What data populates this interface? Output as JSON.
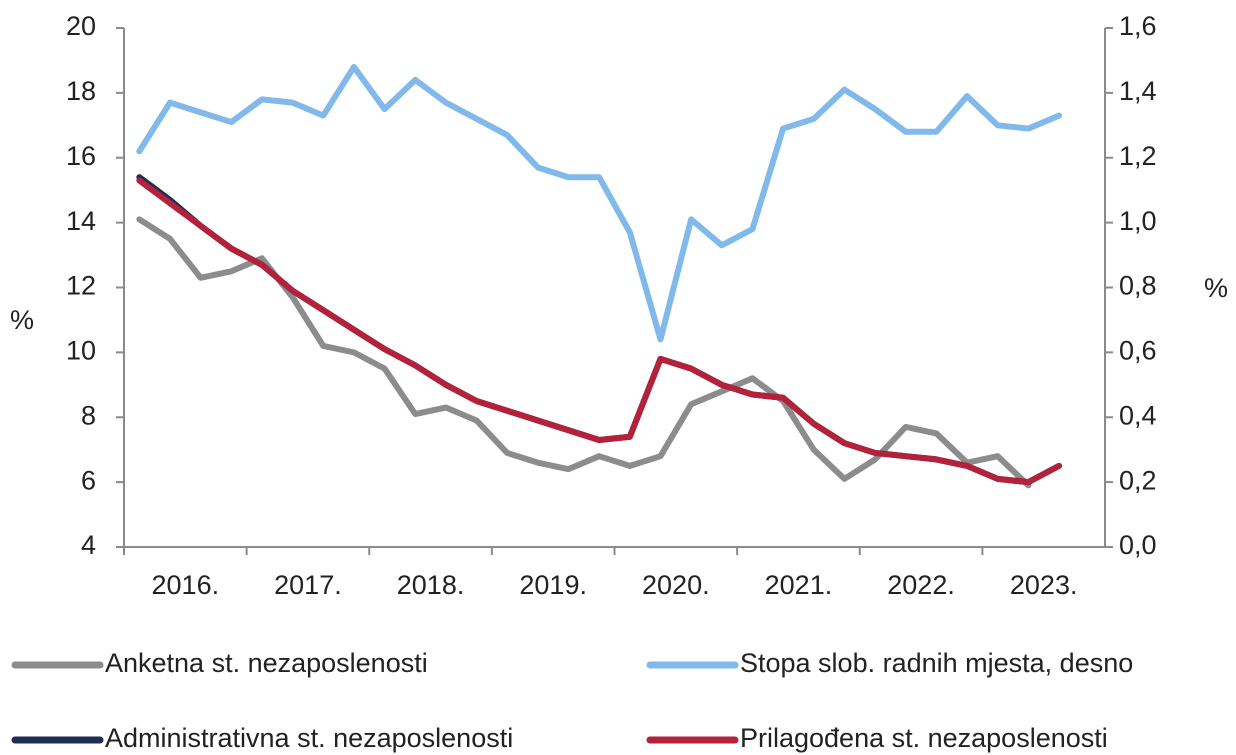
{
  "chart_data": {
    "type": "line",
    "x": [
      2016.125,
      2016.375,
      2016.625,
      2016.875,
      2017.125,
      2017.375,
      2017.625,
      2017.875,
      2018.125,
      2018.375,
      2018.625,
      2018.875,
      2019.125,
      2019.375,
      2019.625,
      2019.875,
      2020.125,
      2020.375,
      2020.625,
      2020.875,
      2021.125,
      2021.375,
      2021.625,
      2021.875,
      2022.125,
      2022.375,
      2022.625,
      2022.875,
      2023.125,
      2023.375,
      2023.625
    ],
    "xlim": [
      2016,
      2024
    ],
    "xticks": [
      {
        "value": 2016.5,
        "label": "2016."
      },
      {
        "value": 2017.5,
        "label": "2017."
      },
      {
        "value": 2018.5,
        "label": "2018."
      },
      {
        "value": 2019.5,
        "label": "2019."
      },
      {
        "value": 2020.5,
        "label": "2020."
      },
      {
        "value": 2021.5,
        "label": "2021."
      },
      {
        "value": 2022.5,
        "label": "2022."
      },
      {
        "value": 2023.5,
        "label": "2023."
      }
    ],
    "ylabel": "%",
    "y2label": "%",
    "ylim": [
      4,
      20
    ],
    "yticks": [
      4,
      6,
      8,
      10,
      12,
      14,
      16,
      18,
      20
    ],
    "y2lim": [
      0,
      1.6
    ],
    "y2ticks": [
      {
        "value": 0,
        "label": "0,0"
      },
      {
        "value": 0.2,
        "label": "0,2"
      },
      {
        "value": 0.4,
        "label": "0,4"
      },
      {
        "value": 0.6,
        "label": "0,6"
      },
      {
        "value": 0.8,
        "label": "0,8"
      },
      {
        "value": 1.0,
        "label": "1,0"
      },
      {
        "value": 1.2,
        "label": "1,2"
      },
      {
        "value": 1.4,
        "label": "1,4"
      },
      {
        "value": 1.6,
        "label": "1,6"
      }
    ],
    "series": [
      {
        "name": "Anketna st. nezaposlenosti",
        "color": "#8c8c8c",
        "values": [
          14.1,
          13.5,
          12.3,
          12.5,
          12.9,
          11.7,
          10.2,
          10.0,
          9.5,
          8.1,
          8.3,
          7.9,
          6.9,
          6.6,
          6.4,
          6.8,
          6.5,
          6.8,
          8.4,
          8.8,
          9.2,
          8.5,
          7.0,
          6.1,
          6.7,
          7.7,
          7.5,
          6.6,
          6.8,
          5.9,
          null
        ]
      },
      {
        "name": "Stopa slob. radnih mjesta, desno",
        "color": "#80b9ea",
        "axis": "y2",
        "values": [
          1.22,
          1.37,
          1.34,
          1.31,
          1.38,
          1.37,
          1.33,
          1.48,
          1.35,
          1.44,
          1.37,
          1.32,
          1.27,
          1.17,
          1.14,
          1.14,
          0.97,
          0.64,
          1.01,
          0.93,
          0.98,
          1.29,
          1.32,
          1.41,
          1.35,
          1.28,
          1.28,
          1.39,
          1.3,
          1.29,
          1.33
        ]
      },
      {
        "name": "Administrativna st. nezaposlenosti",
        "color": "#1f2d4f",
        "values": [
          15.4,
          14.7,
          13.9,
          13.2,
          12.7,
          11.9,
          11.3,
          10.7,
          10.1,
          9.6,
          9.0,
          8.5,
          8.2,
          7.9,
          7.6,
          7.3,
          7.4,
          9.8,
          9.5,
          9.0,
          8.7,
          8.6,
          7.8,
          7.2,
          6.9,
          6.8,
          6.7,
          6.5,
          6.1,
          6.0,
          6.5
        ]
      },
      {
        "name": "Prilagođena st. nezaposlenosti",
        "color": "#b3213b",
        "values": [
          15.3,
          14.6,
          13.9,
          13.2,
          12.7,
          11.9,
          11.3,
          10.7,
          10.1,
          9.6,
          9.0,
          8.5,
          8.2,
          7.9,
          7.6,
          7.3,
          7.4,
          9.8,
          9.5,
          9.0,
          8.7,
          8.6,
          7.8,
          7.2,
          6.9,
          6.8,
          6.7,
          6.5,
          6.1,
          6.0,
          6.5
        ]
      }
    ]
  }
}
